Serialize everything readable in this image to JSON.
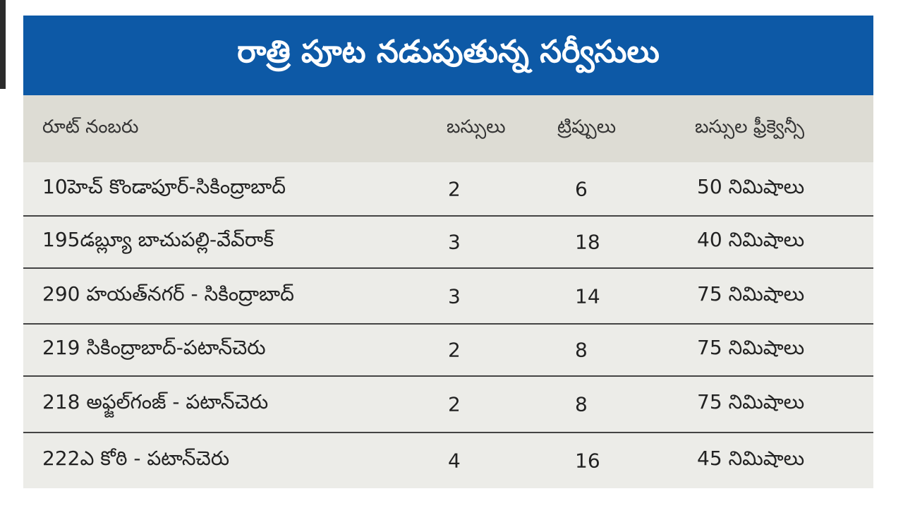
{
  "header": {
    "title": "రాత్రి పూట నడుపుతున్న సర్వీసులు"
  },
  "table": {
    "columns": [
      "రూట్ నంబరు",
      "బస్సులు",
      "ట్రిప్పులు",
      "బస్సుల ఫ్రీక్వెన్సీ"
    ],
    "rows": [
      [
        "10హెచ్ కొండాపూర్-సికింద్రాబాద్",
        2,
        6,
        "50 నిమిషాలు"
      ],
      [
        "195డబ్ల్యూ బాచుపల్లి-వేవ్‌రాక్",
        3,
        18,
        "40 నిమిషాలు"
      ],
      [
        "290 హయత్‌నగర్ - సికింద్రాబాద్",
        3,
        14,
        "75 నిమిషాలు"
      ],
      [
        "219 సికింద్రాబాద్-పటాన్‌చెరు",
        2,
        8,
        "75 నిమిషాలు"
      ],
      [
        "218 అఫ్జల్‌గంజ్ - పటాన్‌చెరు",
        2,
        8,
        "75 నిమిషాలు"
      ],
      [
        "222ఎ కోఠి - పటాన్‌చెరు",
        4,
        16,
        "45 నిమిషాలు"
      ]
    ]
  }
}
